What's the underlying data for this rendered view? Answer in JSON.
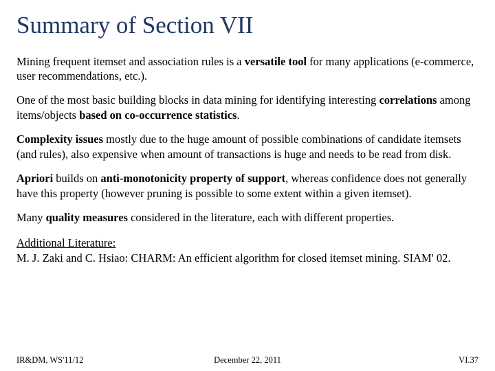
{
  "title_color": "#1f3864",
  "text_color": "#000000",
  "background_color": "#ffffff",
  "title_fontsize": 35,
  "body_fontsize": 16.5,
  "footer_fontsize": 12.5,
  "title": "Summary of Section VII",
  "p1_a": "Mining frequent itemset and association rules is a ",
  "p1_b": "versatile tool",
  "p1_c": " for many applications (e-commerce, user recommendations, etc.).",
  "p2_a": "One of the most basic building blocks in data mining for identifying interesting ",
  "p2_b": "correlations",
  "p2_c": " among items/objects ",
  "p2_d": "based on co-occurrence statistics",
  "p2_e": ".",
  "p3_a": "Complexity issues",
  "p3_b": " mostly due to the huge amount of possible combinations of candidate itemsets (and rules), also expensive when amount of transactions is huge and needs to be read from disk.",
  "p4_a": "Apriori",
  "p4_b": " builds on ",
  "p4_c": "anti-monotonicity property of support",
  "p4_d": ", whereas confidence does not generally have this property (however pruning is possible to some extent within a given itemset).",
  "p5_a": "Many ",
  "p5_b": "quality measures",
  "p5_c": " considered in the literature, each with different properties.",
  "lit_heading": "Additional Literature:",
  "lit_line1": "M. J. Zaki and C. Hsiao: CHARM: An efficient algorithm for closed itemset mining. SIAM' 02.",
  "footer_left": "IR&DM, WS'11/12",
  "footer_center": "December 22, 2011",
  "footer_right": "VI.37"
}
